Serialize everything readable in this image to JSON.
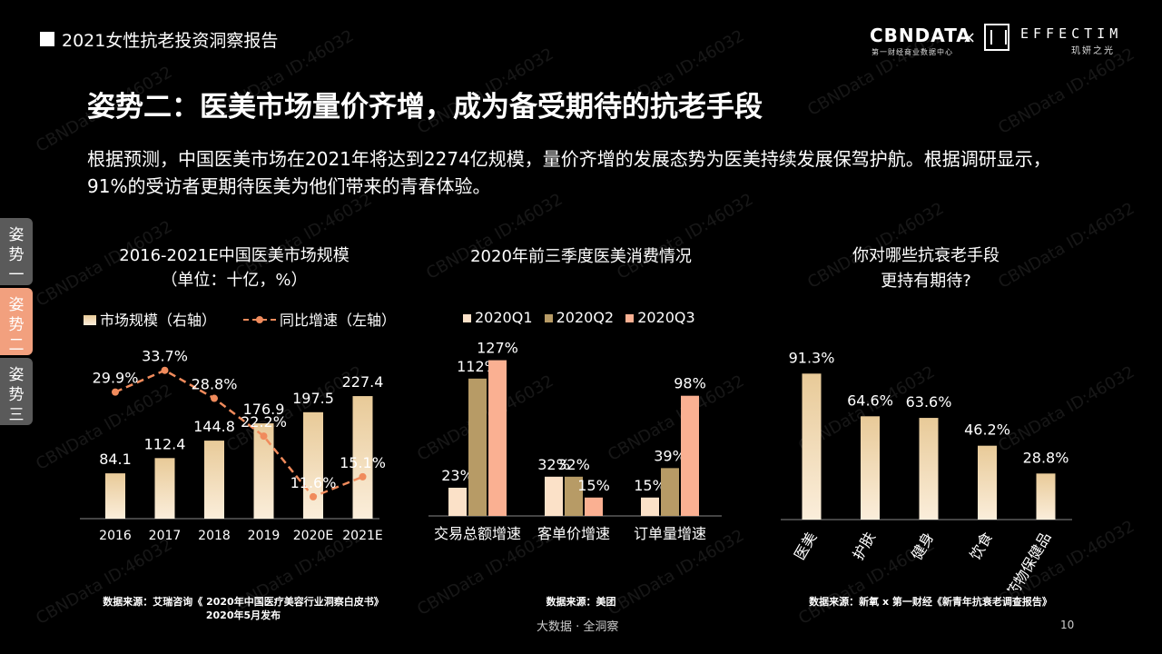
{
  "header": {
    "report_title": "2021女性抗老投资洞察报告",
    "logo_cbn": "CBNDATA",
    "logo_cbn_sub": "第一财经商业数据中心",
    "logo_x": "×",
    "logo_effectim": "EFFECTIM",
    "logo_effectim_sub": "玑妍之光"
  },
  "title": "姿势二：医美市场量价齐增，成为备受期待的抗老手段",
  "description": "根据预测，中国医美市场在2021年将达到2274亿规模，量价齐增的发展态势为医美持续发展保驾护航。根据调研显示，91%的受访者更期待医美为他们带来的青春体验。",
  "side_tabs": [
    {
      "label": "姿势一"
    },
    {
      "label": "姿势二"
    },
    {
      "label": "姿势三"
    }
  ],
  "watermark": "CBNData ID:46032",
  "colors": {
    "bar_top": "#e8ca98",
    "bar_bottom": "#fbeedb",
    "q1": "#fbe1c8",
    "q2": "#b79b66",
    "q3": "#fab092",
    "line": "#f08b5c",
    "tab_active": "#f2a07e"
  },
  "chart_data": [
    {
      "type": "bar",
      "title": "2016-2021E中国医美市场规模",
      "subtitle": "（单位：十亿，%）",
      "categories": [
        "2016",
        "2017",
        "2018",
        "2019",
        "2020E",
        "2021E"
      ],
      "series": [
        {
          "name": "市场规模（右轴）",
          "type": "bar",
          "values": [
            84.1,
            112.4,
            144.8,
            176.9,
            197.5,
            227.4
          ],
          "labels": [
            "84.1",
            "112.4",
            "144.8",
            "176.9",
            "197.5",
            "227.4"
          ]
        },
        {
          "name": "同比增速（左轴）",
          "type": "line",
          "values": [
            29.9,
            33.7,
            28.8,
            22.2,
            11.6,
            15.1
          ],
          "labels": [
            "29.9%",
            "33.7%",
            "28.8%",
            "22.2%",
            "11.6%",
            "15.1%"
          ]
        }
      ],
      "source": "数据来源：艾瑞咨询《 2020年中国医疗美容行业洞察白皮书》",
      "source2": "2020年5月发布"
    },
    {
      "type": "bar",
      "title": "2020年前三季度医美消费情况",
      "categories": [
        "交易总额增速",
        "客单价增速",
        "订单量增速"
      ],
      "series": [
        {
          "name": "2020Q1",
          "values": [
            23,
            32,
            15
          ],
          "labels": [
            "23%",
            "32%",
            "15%"
          ]
        },
        {
          "name": "2020Q2",
          "values": [
            112,
            32,
            39
          ],
          "labels": [
            "112%",
            "32%",
            "39%"
          ]
        },
        {
          "name": "2020Q3",
          "values": [
            127,
            15,
            98
          ],
          "labels": [
            "127%",
            "15%",
            "98%"
          ]
        }
      ],
      "source": "数据来源：美团"
    },
    {
      "type": "bar",
      "title": "你对哪些抗衰老手段",
      "title2": "更持有期待?",
      "categories": [
        "医美",
        "护肤",
        "健身",
        "饮食",
        "药物保健品"
      ],
      "values": [
        91.3,
        64.6,
        63.6,
        46.2,
        28.8
      ],
      "labels": [
        "91.3%",
        "64.6%",
        "63.6%",
        "46.2%",
        "28.8%"
      ],
      "source": "数据来源：新氧 x 第一财经《新青年抗衰老调查报告》"
    }
  ],
  "footer": {
    "center": "大数据 · 全洞察",
    "page": "10"
  }
}
